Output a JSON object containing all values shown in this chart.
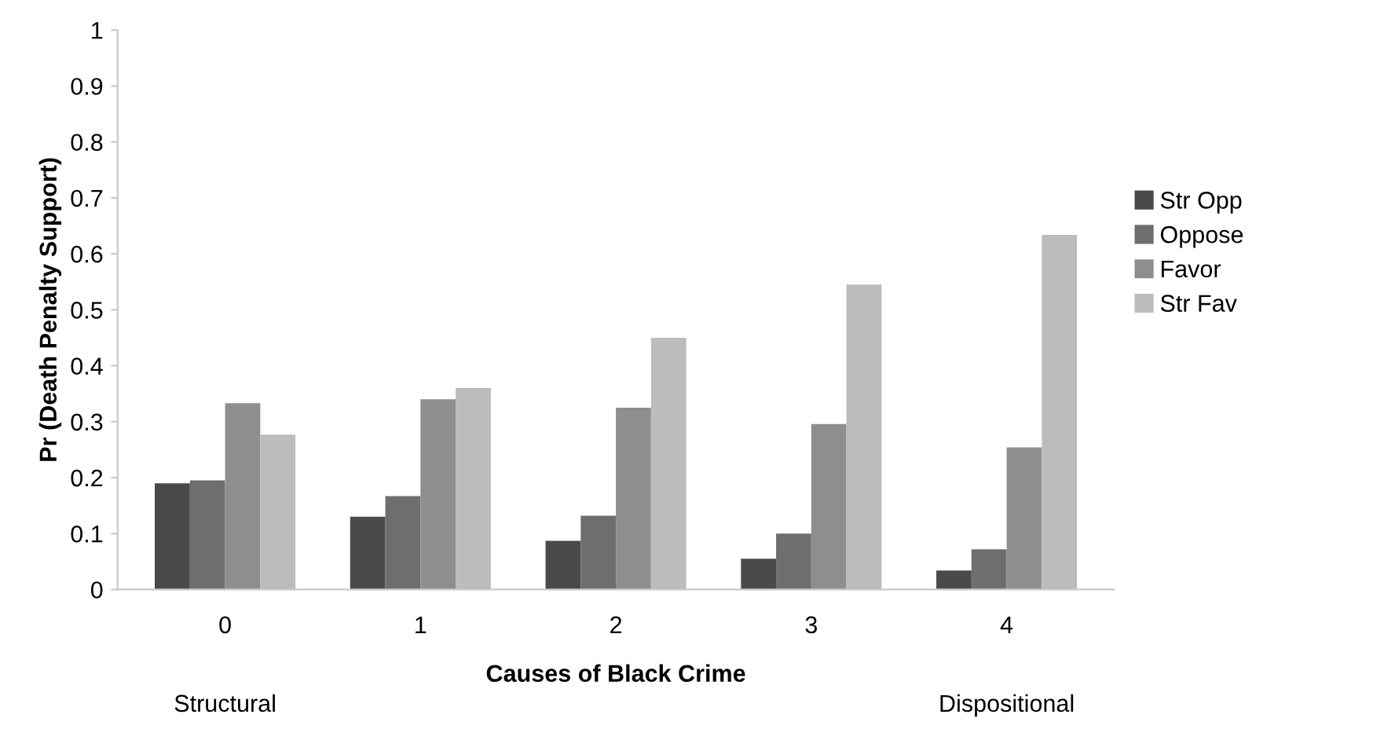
{
  "chart_data": {
    "type": "bar",
    "categories": [
      "0",
      "1",
      "2",
      "3",
      "4"
    ],
    "xlabel": "Causes of Black Crime",
    "ylabel": "Pr (Death Penalty Support)",
    "ylim": [
      0,
      1
    ],
    "yticks": [
      0,
      0.1,
      0.2,
      0.3,
      0.4,
      0.5,
      0.6,
      0.7,
      0.8,
      0.9,
      1
    ],
    "series": [
      {
        "name": "Str Opp",
        "color": "#4a4a4a",
        "values": [
          0.19,
          0.13,
          0.087,
          0.055,
          0.034
        ]
      },
      {
        "name": "Oppose",
        "color": "#6e6e6e",
        "values": [
          0.195,
          0.167,
          0.132,
          0.1,
          0.072
        ]
      },
      {
        "name": "Favor",
        "color": "#8e8e8e",
        "values": [
          0.333,
          0.34,
          0.325,
          0.296,
          0.254
        ]
      },
      {
        "name": "Str Fav",
        "color": "#bcbcbc",
        "values": [
          0.277,
          0.36,
          0.45,
          0.545,
          0.634
        ]
      }
    ],
    "annotations": [
      "Structural",
      "Dispositional"
    ],
    "legend": "right",
    "grid": false
  }
}
